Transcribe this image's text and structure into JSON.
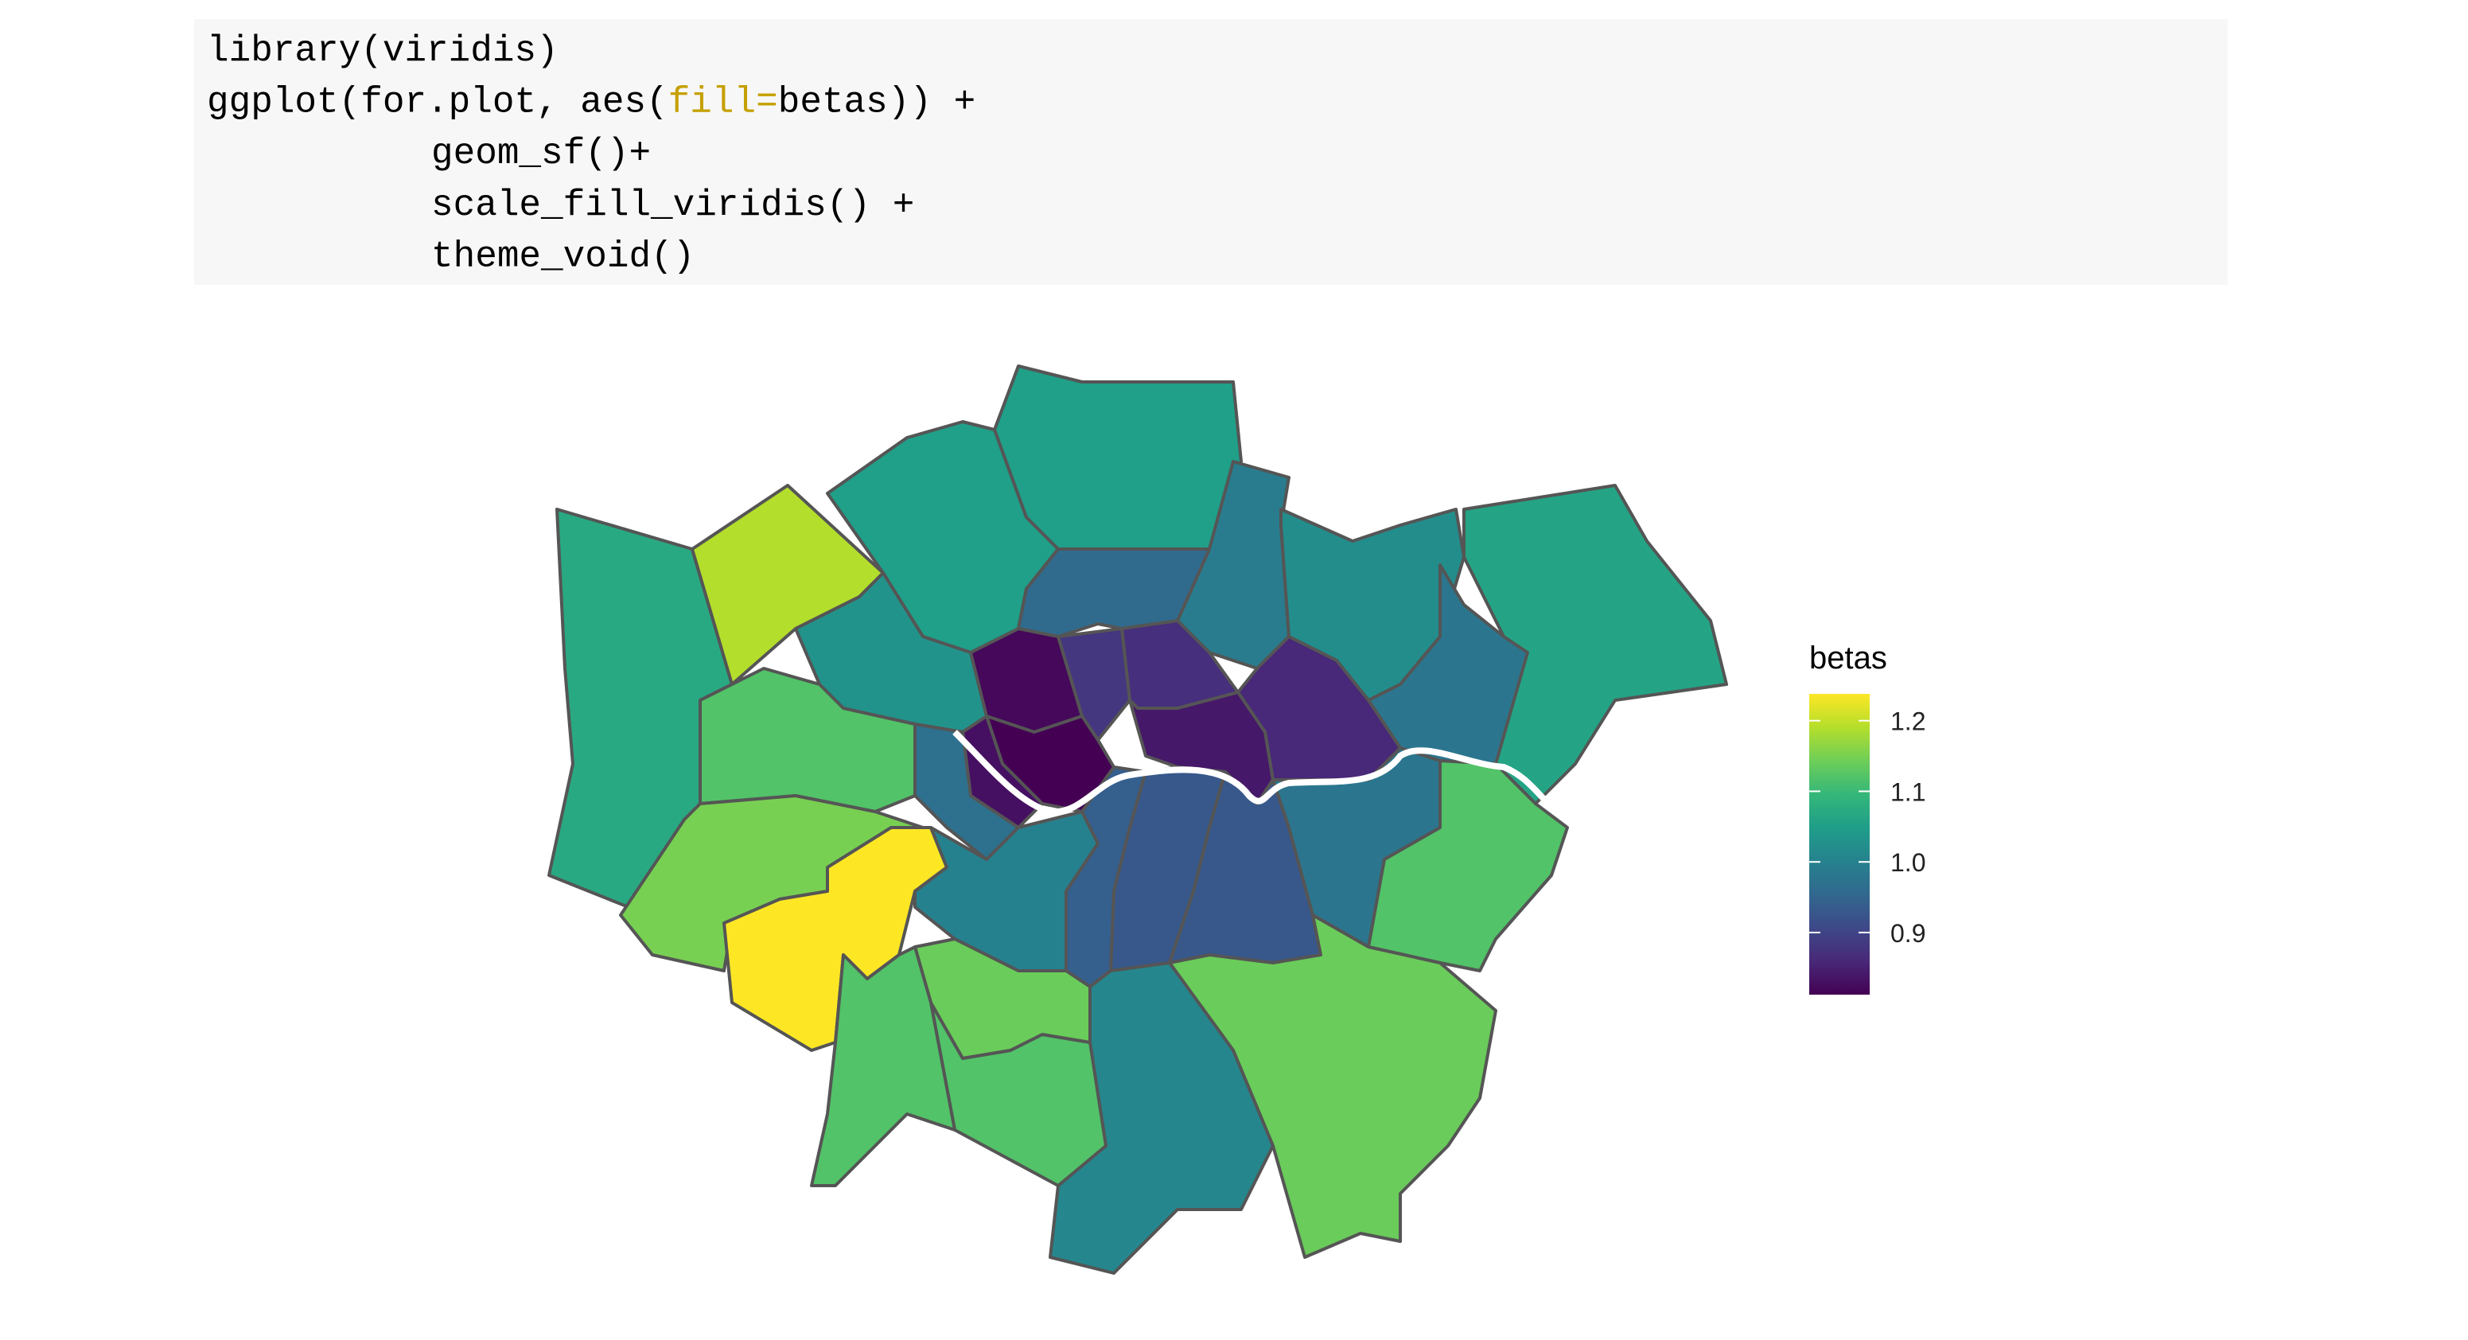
{
  "code": [
    [
      "library(viridis)"
    ],
    [
      "ggplot(for.plot, aes(",
      "fill=",
      "betas)) +"
    ],
    [
      "geom_sf()+"
    ],
    [
      "scale_fill_viridis() +"
    ],
    [
      "theme_void()"
    ]
  ],
  "chart_data": {
    "type": "choropleth",
    "colorscale": "viridis",
    "legend_title": "betas",
    "values": [
      1.07,
      1.19,
      1.05,
      1.05,
      0.99,
      0.96,
      1.02,
      1.06,
      0.98,
      1.03,
      1.12,
      0.82,
      0.88,
      0.87,
      0.86,
      0.84,
      0.81,
      0.83,
      0.97,
      1.15,
      1.24,
      1.0,
      0.94,
      0.93,
      0.93,
      0.98,
      1.12,
      1.14,
      1.01,
      1.12,
      1.14,
      1.12
    ],
    "colorlim": [
      0.812,
      1.238
    ],
    "ticks": [
      0.9,
      {
        "value": 1,
        "label": "1.0"
      },
      1.1,
      1.2
    ]
  }
}
